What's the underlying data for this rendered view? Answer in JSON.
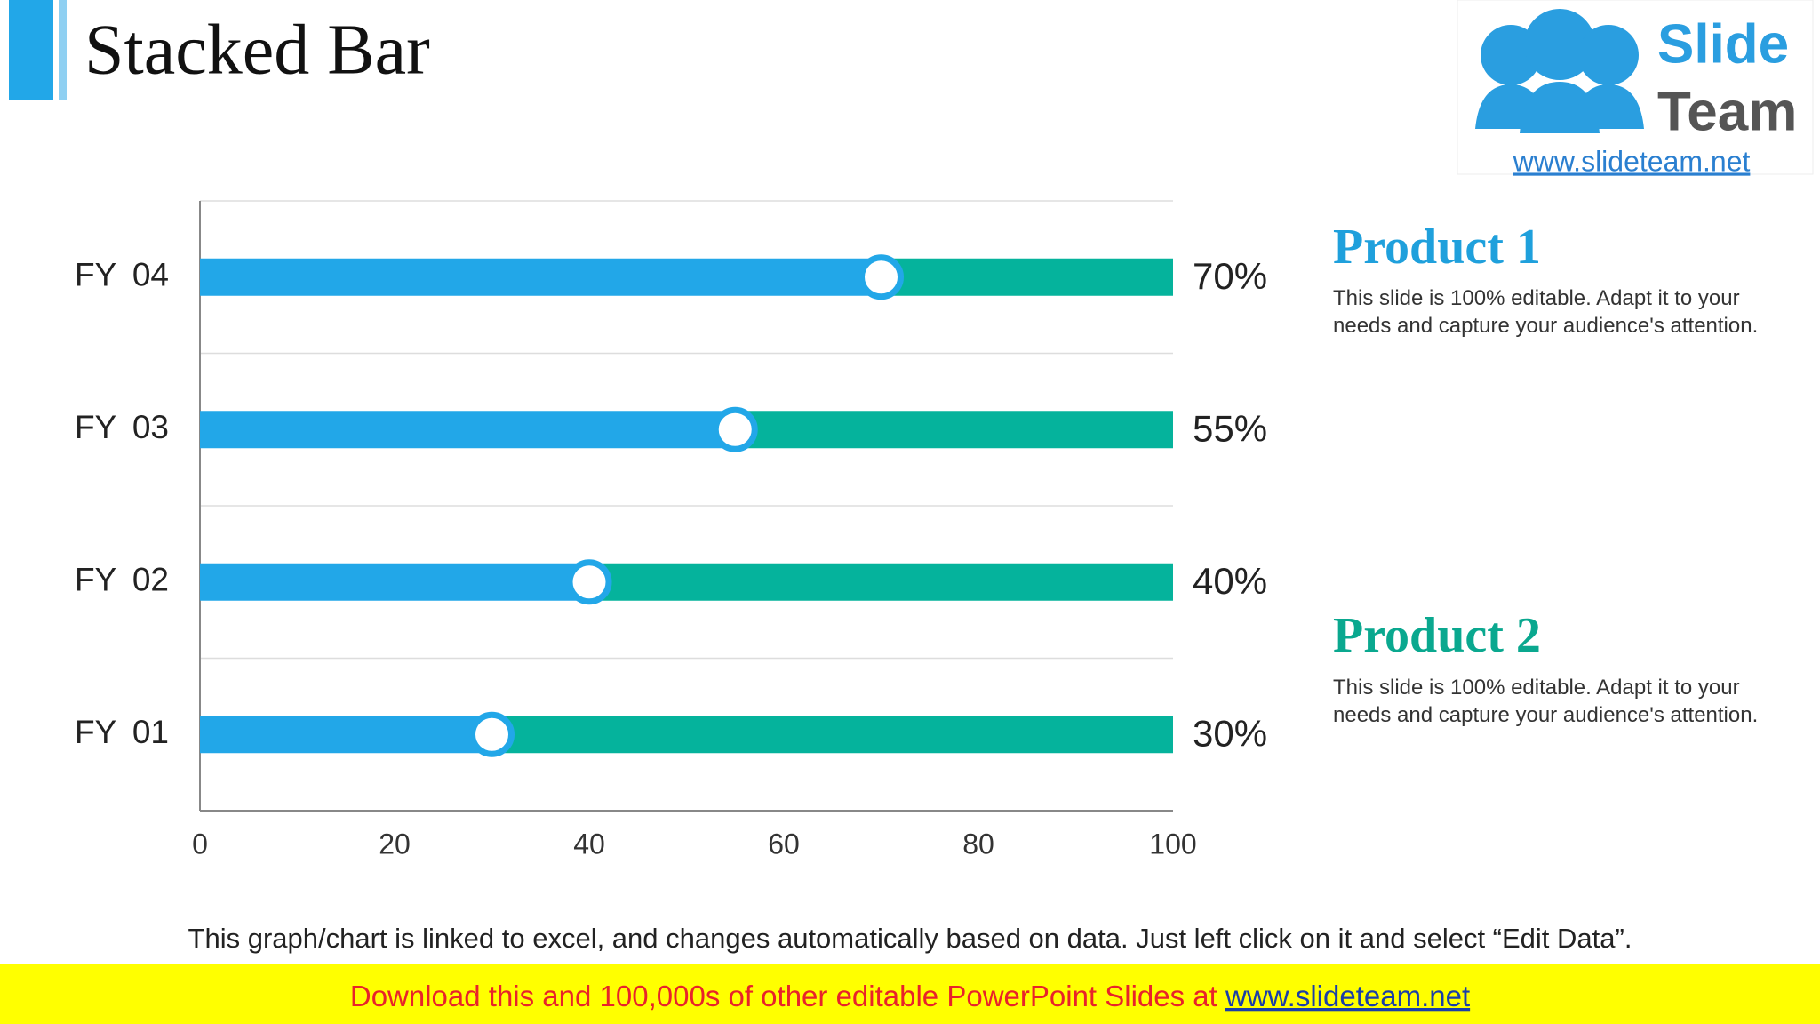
{
  "chart_data": {
    "type": "bar",
    "orientation": "horizontal",
    "stacked": true,
    "title": "Stacked Bar",
    "categories": [
      "FY 01",
      "FY 02",
      "FY 03",
      "FY 04"
    ],
    "series": [
      {
        "name": "Product 1",
        "color": "#22a7e8",
        "values": [
          30,
          40,
          55,
          70
        ],
        "value_labels": [
          "30%",
          "40%",
          "55%",
          "70%"
        ]
      },
      {
        "name": "Product 2",
        "color": "#05b39c",
        "values": [
          70,
          60,
          45,
          30
        ]
      }
    ],
    "annotations": [
      "This slide is 100% editable. Adapt it to your needs and capture your audience's attention.",
      "This slide is 100% editable. Adapt it to your needs and capture your audience's attention."
    ],
    "xlim": [
      0,
      100
    ],
    "xticks": [
      0,
      20,
      40,
      60,
      80,
      100
    ]
  },
  "footer": {
    "note": "This graph/chart is linked to excel, and changes automatically based on data. Just left click on it and select “Edit Data”.",
    "banner_text": "Download this and 100,000s of other editable PowerPoint Slides at ",
    "banner_link": "www.slideteam.net"
  },
  "logo": {
    "word1": "Slide",
    "word2": "Team",
    "url": "www.slideteam.net"
  }
}
